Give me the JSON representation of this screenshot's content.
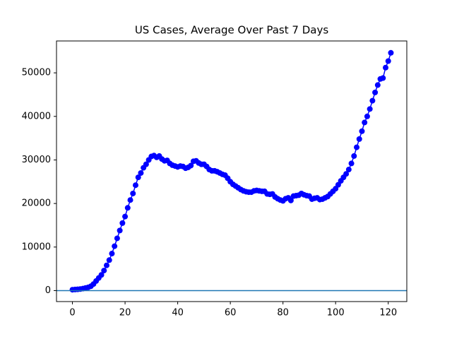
{
  "chart_data": {
    "type": "line",
    "title": "US Cases, Average Over Past 7 Days",
    "x": [
      0,
      1,
      2,
      3,
      4,
      5,
      6,
      7,
      8,
      9,
      10,
      11,
      12,
      13,
      14,
      15,
      16,
      17,
      18,
      19,
      20,
      21,
      22,
      23,
      24,
      25,
      26,
      27,
      28,
      29,
      30,
      31,
      32,
      33,
      34,
      35,
      36,
      37,
      38,
      39,
      40,
      41,
      42,
      43,
      44,
      45,
      46,
      47,
      48,
      49,
      50,
      51,
      52,
      53,
      54,
      55,
      56,
      57,
      58,
      59,
      60,
      61,
      62,
      63,
      64,
      65,
      66,
      67,
      68,
      69,
      70,
      71,
      72,
      73,
      74,
      75,
      76,
      77,
      78,
      79,
      80,
      81,
      82,
      83,
      84,
      85,
      86,
      87,
      88,
      89,
      90,
      91,
      92,
      93,
      94,
      95,
      96,
      97,
      98,
      99,
      100,
      101,
      102,
      103,
      104,
      105,
      106,
      107,
      108,
      109,
      110,
      111,
      112,
      113,
      114,
      115,
      116,
      117,
      118,
      119,
      120,
      121
    ],
    "series": [
      {
        "color": "#0000ff",
        "values": [
          200,
          250,
          300,
          350,
          450,
          600,
          750,
          1000,
          1500,
          2200,
          2900,
          3600,
          4600,
          5800,
          7000,
          8500,
          10200,
          12000,
          13800,
          15500,
          17000,
          19000,
          20800,
          22300,
          24200,
          26000,
          27000,
          28200,
          29000,
          30000,
          30800,
          31000,
          30600,
          30900,
          30200,
          29800,
          29900,
          29200,
          28800,
          28600,
          28400,
          28600,
          28500,
          28100,
          28300,
          28700,
          29700,
          29800,
          29300,
          29000,
          29000,
          28500,
          27800,
          27500,
          27500,
          27300,
          27000,
          26700,
          26500,
          25800,
          25000,
          24400,
          24000,
          23600,
          23200,
          22900,
          22700,
          22600,
          22600,
          22900,
          23000,
          22900,
          22800,
          22800,
          22200,
          22100,
          22200,
          21500,
          21100,
          20800,
          20600,
          21100,
          21300,
          20700,
          21700,
          21800,
          21900,
          22300,
          22000,
          21800,
          21700,
          21000,
          21200,
          21300,
          20900,
          21000,
          21300,
          21600,
          22200,
          22800,
          23400,
          24300,
          25200,
          26000,
          26800,
          27800,
          29200,
          30900,
          32900,
          34800,
          36600,
          38600,
          40000,
          41700,
          43600,
          45500,
          47200,
          48600,
          48800,
          51200,
          52700,
          54600
        ]
      }
    ],
    "hline": {
      "value": 0,
      "color": "#1f77b4"
    },
    "xlim": [
      -6.05,
      127.05
    ],
    "ylim": [
      -2520,
      57320
    ],
    "xticks": [
      0,
      20,
      40,
      60,
      80,
      100,
      120
    ],
    "yticks": [
      0,
      10000,
      20000,
      30000,
      40000,
      50000
    ]
  }
}
